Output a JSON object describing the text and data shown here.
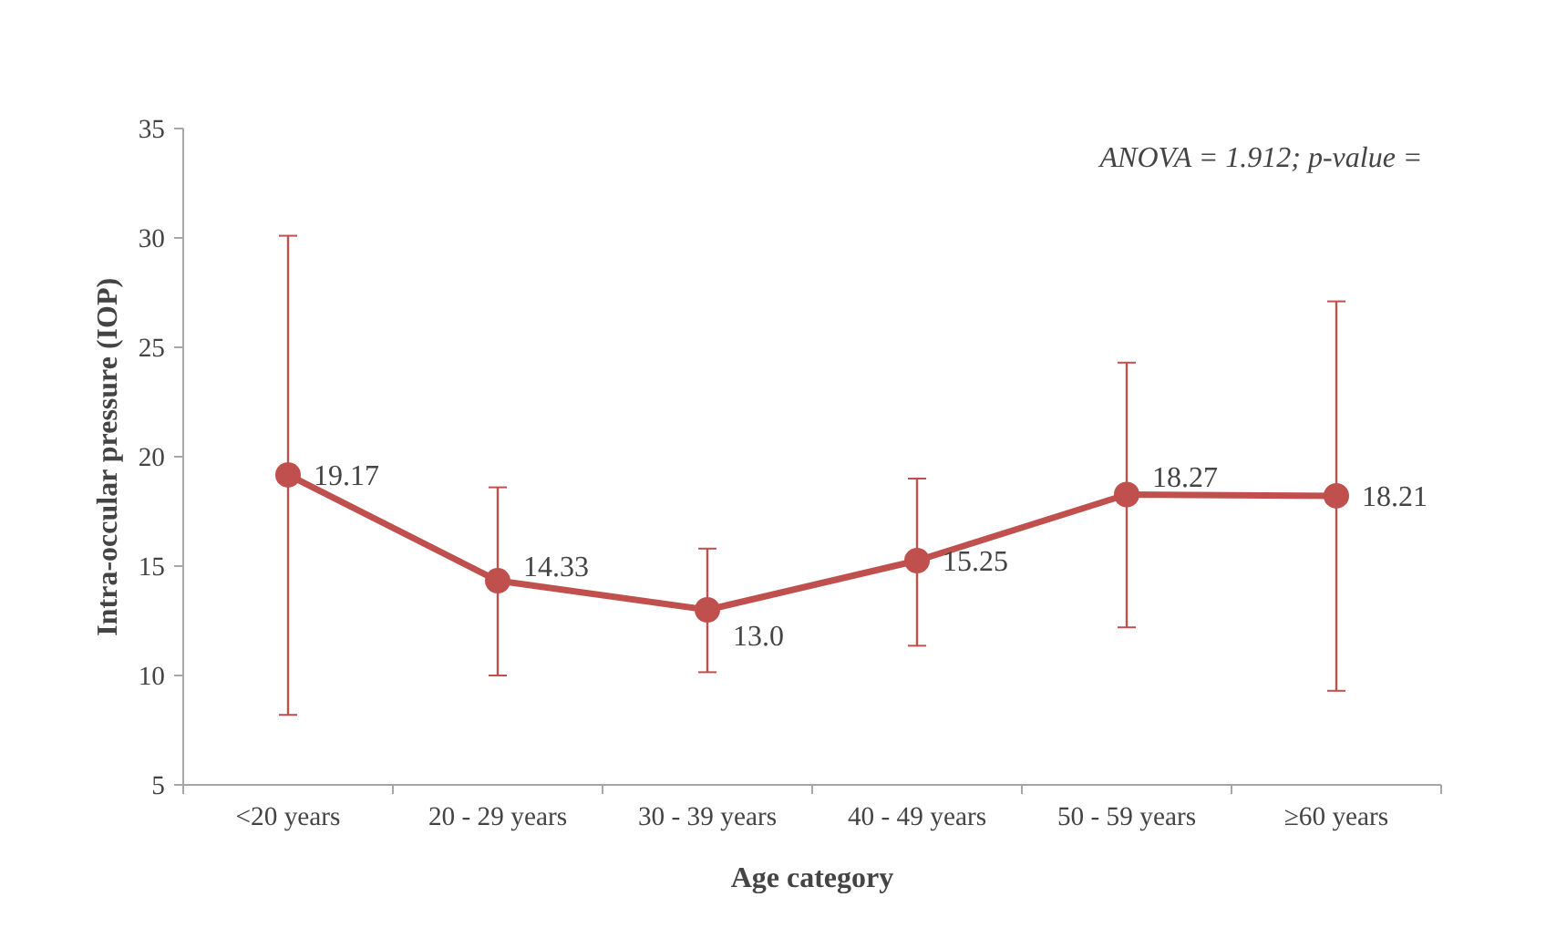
{
  "chart_data": {
    "type": "line",
    "xlabel": "Age category",
    "ylabel": "Intra-occular pressure (IOP)",
    "categories": [
      "<20 years",
      "20 - 29 years",
      "30 - 39 years",
      "40 - 49 years",
      "50 - 59 years",
      "≥60 years"
    ],
    "series": [
      {
        "color": "#c0504d",
        "values": [
          19.17,
          14.33,
          13.0,
          15.25,
          18.27,
          18.21
        ],
        "value_labels": [
          "19.17",
          "14.33",
          "13.0",
          "15.25",
          "18.27",
          "18.21"
        ],
        "errors": [
          [
            8.2,
            30.1
          ],
          [
            10.0,
            18.6
          ],
          [
            10.15,
            15.8
          ],
          [
            11.36,
            19.0
          ],
          [
            12.2,
            24.3
          ],
          [
            9.3,
            27.1
          ]
        ]
      }
    ],
    "ylim": [
      5,
      35
    ],
    "yticks": [
      5,
      10,
      15,
      20,
      25,
      30,
      35
    ],
    "marker": "circle",
    "line_style": "solid",
    "annotations": [
      "ANOVA = 1.912; p-value ="
    ]
  }
}
